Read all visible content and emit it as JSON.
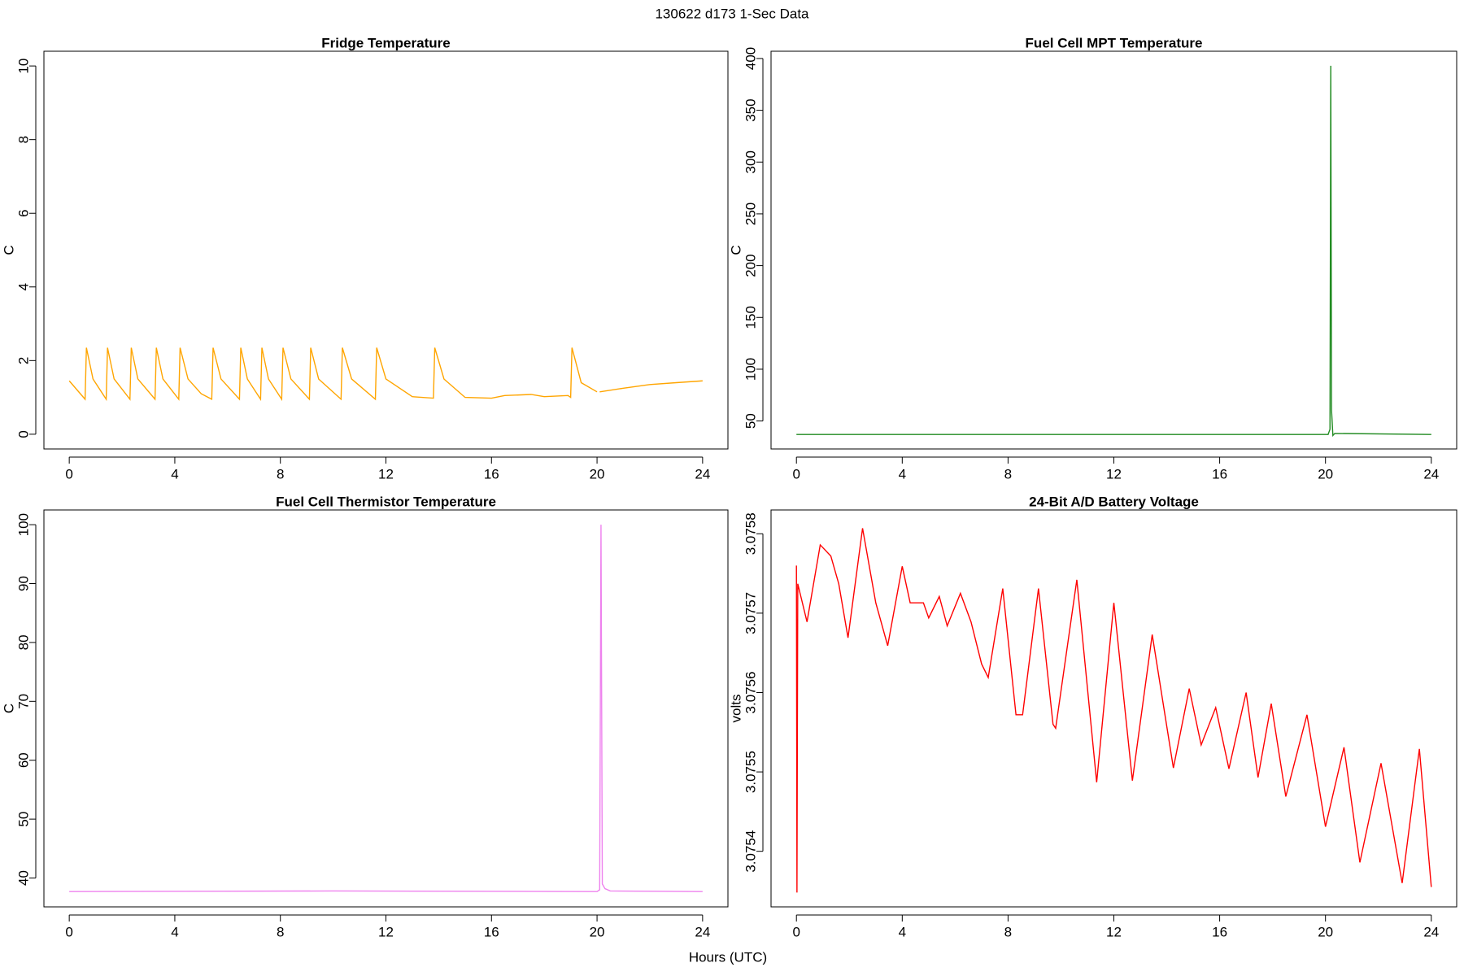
{
  "title": "130622   d173   1-Sec Data",
  "x_label": "Hours (UTC)",
  "chart_data": [
    {
      "type": "line",
      "title": "Fridge Temperature",
      "y_label": "C",
      "color": "#ffa500",
      "x": [
        0,
        0.6,
        0.65,
        0.9,
        1.4,
        1.45,
        1.7,
        2.3,
        2.35,
        2.6,
        3.25,
        3.3,
        3.55,
        4.15,
        4.2,
        4.5,
        5.0,
        5.4,
        5.45,
        5.75,
        6.45,
        6.5,
        6.75,
        7.25,
        7.3,
        7.55,
        8.05,
        8.1,
        8.4,
        9.1,
        9.15,
        9.45,
        10.3,
        10.35,
        10.7,
        11.6,
        11.65,
        12.0,
        13.0,
        13.8,
        13.85,
        14.2,
        15.0,
        16.0,
        16.5,
        17.5,
        18.0,
        18.9,
        19.0,
        19.05,
        19.4,
        20.0,
        20.05,
        20.1,
        21,
        22,
        23,
        24
      ],
      "values": [
        1.45,
        0.95,
        2.35,
        1.5,
        0.95,
        2.35,
        1.5,
        0.95,
        2.35,
        1.5,
        0.95,
        2.35,
        1.5,
        0.95,
        2.35,
        1.5,
        1.1,
        0.95,
        2.35,
        1.5,
        0.95,
        2.35,
        1.5,
        0.95,
        2.35,
        1.5,
        0.95,
        2.35,
        1.5,
        0.95,
        2.35,
        1.5,
        0.95,
        2.35,
        1.5,
        0.95,
        2.35,
        1.5,
        1.02,
        0.98,
        2.35,
        1.5,
        1.0,
        0.98,
        1.05,
        1.08,
        1.02,
        1.05,
        1.0,
        2.35,
        1.4,
        1.15,
        null,
        1.15,
        1.25,
        1.35,
        1.4,
        1.45
      ],
      "xlim": [
        -0.96,
        24.96
      ],
      "xticks": [
        0,
        4,
        8,
        12,
        16,
        20,
        24
      ],
      "ylim": [
        -0.4,
        10.4
      ],
      "yticks": [
        0,
        2,
        4,
        6,
        8,
        10
      ]
    },
    {
      "type": "line",
      "title": "Fuel Cell MPT Temperature",
      "y_label": "C",
      "color": "#228b22",
      "x": [
        0,
        20.1,
        20.17,
        20.2,
        20.23,
        20.28,
        20.35,
        24
      ],
      "values": [
        37,
        37,
        42,
        393,
        60,
        36,
        38,
        37
      ],
      "xlim": [
        -0.96,
        24.96
      ],
      "xticks": [
        0,
        4,
        8,
        12,
        16,
        20,
        24
      ],
      "ylim": [
        23,
        407
      ],
      "yticks": [
        50,
        100,
        150,
        200,
        250,
        300,
        350,
        400
      ]
    },
    {
      "type": "line",
      "title": "Fuel Cell Thermistor Temperature",
      "y_label": "C",
      "color": "#ee82ee",
      "x": [
        0,
        10,
        20,
        20.1,
        20.15,
        20.2,
        20.3,
        20.5,
        24
      ],
      "values": [
        37.7,
        37.8,
        37.7,
        38,
        100,
        39,
        38.2,
        37.8,
        37.7
      ],
      "xlim": [
        -0.96,
        24.96
      ],
      "xticks": [
        0,
        4,
        8,
        12,
        16,
        20,
        24
      ],
      "ylim": [
        35.1,
        102.5
      ],
      "yticks": [
        40,
        50,
        60,
        70,
        80,
        90,
        100
      ]
    },
    {
      "type": "line",
      "title": "24-Bit A/D Battery Voltage",
      "y_label": "volts",
      "color": "#ff0000",
      "x": [
        0,
        0.02,
        0.05,
        0.4,
        0.9,
        1.3,
        1.6,
        1.95,
        2.5,
        3.0,
        3.45,
        4.0,
        4.3,
        4.8,
        5.0,
        5.4,
        5.7,
        6.2,
        6.6,
        7.0,
        7.25,
        7.8,
        8.3,
        8.55,
        9.15,
        9.7,
        9.8,
        10.6,
        11.35,
        12.0,
        12.7,
        13.45,
        14.25,
        14.85,
        15.3,
        15.85,
        16.35,
        17.0,
        17.45,
        17.95,
        18.5,
        19.3,
        20.0,
        20.7,
        21.3,
        22.1,
        22.9,
        23.55,
        24
      ],
      "values": [
        3.07576,
        3.075348,
        3.075737,
        3.075689,
        3.075786,
        3.075772,
        3.075737,
        3.075669,
        3.075807,
        3.075713,
        3.075659,
        3.075759,
        3.075713,
        3.075713,
        3.075694,
        3.075721,
        3.075684,
        3.075725,
        3.075689,
        3.075636,
        3.075619,
        3.075731,
        3.075572,
        3.075572,
        3.075731,
        3.07556,
        3.075555,
        3.075742,
        3.075487,
        3.075713,
        3.075489,
        3.075673,
        3.075505,
        3.075605,
        3.075534,
        3.075581,
        3.075504,
        3.0756,
        3.075493,
        3.075586,
        3.075469,
        3.075572,
        3.075431,
        3.075531,
        3.075386,
        3.075511,
        3.07536,
        3.075529,
        3.075355
      ],
      "xlim": [
        -0.96,
        24.96
      ],
      "xticks": [
        0,
        4,
        8,
        12,
        16,
        20,
        24
      ],
      "ylim": [
        3.07533,
        3.07583
      ],
      "yticks": [
        3.0754,
        3.0755,
        3.0756,
        3.0757,
        3.0758
      ]
    }
  ]
}
